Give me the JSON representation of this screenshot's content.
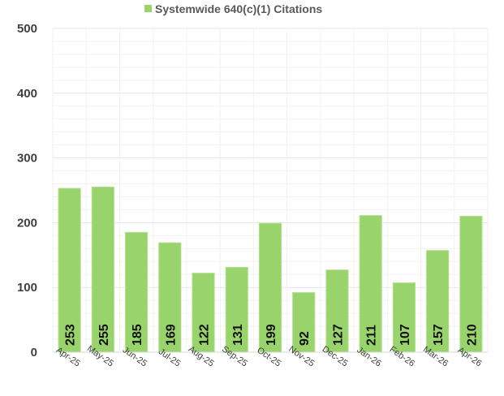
{
  "chart_data": {
    "type": "bar",
    "categories": [
      "Apr-25",
      "May-25",
      "Jun-25",
      "Jul-25",
      "Aug-25",
      "Sep-25",
      "Oct-25",
      "Nov-25",
      "Dec-25",
      "Jan-26",
      "Feb-26",
      "Mar-26",
      "Apr-26"
    ],
    "series": [
      {
        "name": "Systemwide 640(c)(1) Citations",
        "values": [
          253,
          255,
          185,
          169,
          122,
          131,
          199,
          92,
          127,
          211,
          107,
          157,
          210
        ],
        "color": "#99d36c"
      }
    ],
    "ylim": [
      0,
      500
    ],
    "yticks": [
      0,
      100,
      200,
      300,
      400,
      500
    ],
    "grid": true,
    "legend_position": "top",
    "data_labels": true,
    "data_label_orientation": "vertical"
  }
}
